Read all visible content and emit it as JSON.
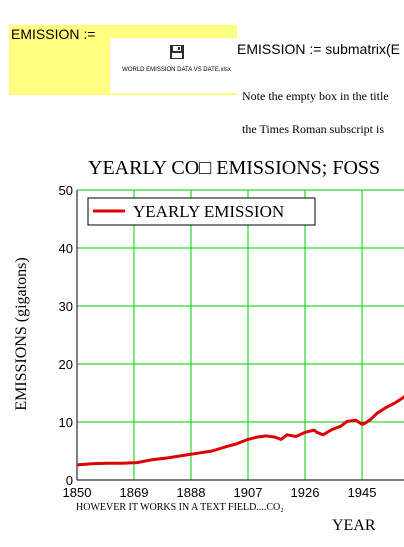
{
  "worksheet": {
    "region_label": "EMISSION :=",
    "file_icon": "save-disk-icon",
    "file_name": "WORLD EMISSION DATA VS DATE.xlsx",
    "submatrix_text": "EMISSION := submatrix(E",
    "note_line_1": "Note the empty box in the title",
    "note_line_2": "the Times Roman subscript is",
    "footer_note": "HOWEVER IT WORKS IN A TEXT FIELD....CO₂",
    "region_color": "#ffff80"
  },
  "chart_data": {
    "type": "line",
    "title": "YEARLY CO□ EMISSIONS; FOSS",
    "xlabel": "YEAR",
    "ylabel": "EMISSIONS (gigatons)",
    "xlim": [
      1850,
      1964
    ],
    "ylim": [
      0,
      50
    ],
    "x_ticks": [
      "1850",
      "1869",
      "1888",
      "1907",
      "1926",
      "1945",
      "1"
    ],
    "y_ticks": [
      "0",
      "10",
      "20",
      "30",
      "40",
      "50"
    ],
    "grid": true,
    "grid_color": "#00cc00",
    "legend_position": "top-left",
    "series": [
      {
        "name": "YEARLY EMISSION",
        "color": "#dd0000",
        "x": [
          1850,
          1855,
          1860,
          1865,
          1870,
          1875,
          1880,
          1885,
          1890,
          1895,
          1900,
          1903,
          1907,
          1910,
          1913,
          1916,
          1918,
          1920,
          1923,
          1926,
          1929,
          1930,
          1932,
          1935,
          1938,
          1940,
          1943,
          1945,
          1946,
          1948,
          1950,
          1953,
          1956,
          1959,
          1962,
          1964
        ],
        "y": [
          2.6,
          2.8,
          2.9,
          2.9,
          3.0,
          3.5,
          3.8,
          4.2,
          4.6,
          5.0,
          5.8,
          6.2,
          7.0,
          7.4,
          7.6,
          7.4,
          7.0,
          7.8,
          7.5,
          8.2,
          8.6,
          8.2,
          7.8,
          8.7,
          9.3,
          10.1,
          10.3,
          9.6,
          9.8,
          10.5,
          11.5,
          12.5,
          13.3,
          14.3,
          16.0,
          15.6
        ]
      }
    ]
  }
}
